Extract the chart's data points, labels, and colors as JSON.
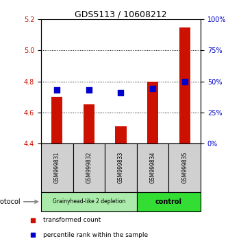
{
  "title": "GDS5113 / 10608212",
  "samples": [
    "GSM999831",
    "GSM999832",
    "GSM999833",
    "GSM999834",
    "GSM999835"
  ],
  "transformed_count": [
    4.7,
    4.65,
    4.51,
    4.8,
    5.15
  ],
  "percentile_rank": [
    43,
    43,
    41,
    44,
    50
  ],
  "ylim_left": [
    4.4,
    5.2
  ],
  "ylim_right": [
    0,
    100
  ],
  "bar_color": "#cc1100",
  "dot_color": "#0000cc",
  "yticks_left": [
    4.4,
    4.6,
    4.8,
    5.0,
    5.2
  ],
  "yticks_right": [
    0,
    25,
    50,
    75,
    100
  ],
  "groups": [
    {
      "label": "Grainyhead-like 2 depletion",
      "indices": [
        0,
        1,
        2
      ],
      "color": "#aaeaaa"
    },
    {
      "label": "control",
      "indices": [
        3,
        4
      ],
      "color": "#33dd33"
    }
  ],
  "protocol_label": "protocol",
  "legend_items": [
    {
      "label": "transformed count",
      "color": "#cc1100"
    },
    {
      "label": "percentile rank within the sample",
      "color": "#0000cc"
    }
  ],
  "bar_bottom": 4.4,
  "dot_size": 28,
  "bar_width": 0.35
}
